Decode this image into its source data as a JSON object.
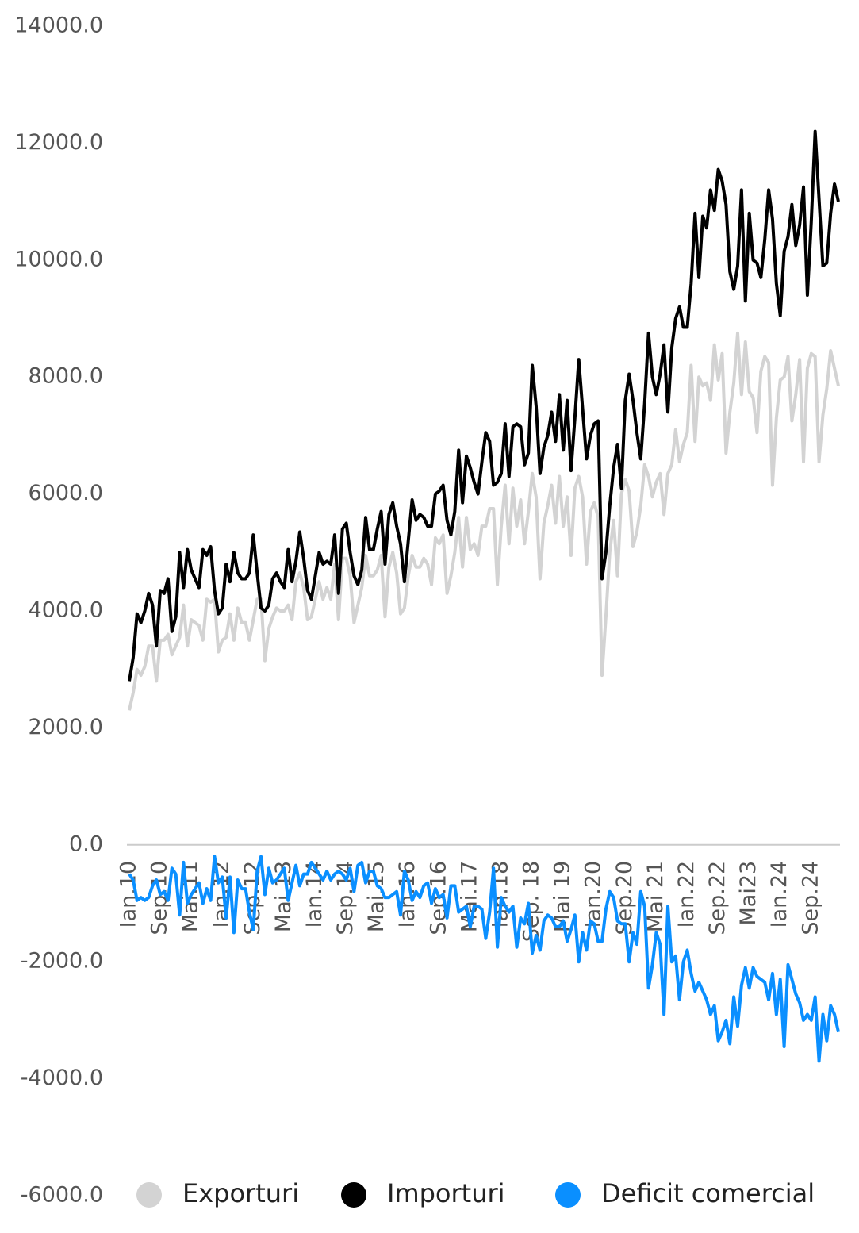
{
  "chart_data": {
    "type": "line",
    "categories": [
      "Ian.10",
      null,
      null,
      null,
      null,
      null,
      null,
      null,
      "Sep.10",
      null,
      null,
      null,
      null,
      null,
      null,
      null,
      "Mai.11",
      null,
      null,
      null,
      null,
      null,
      null,
      null,
      "Ian.12",
      null,
      null,
      null,
      null,
      null,
      null,
      null,
      "Sep.12",
      null,
      null,
      null,
      null,
      null,
      null,
      null,
      "Mai.13",
      null,
      null,
      null,
      null,
      null,
      null,
      null,
      "Ian.14",
      null,
      null,
      null,
      null,
      null,
      null,
      null,
      "Sep.14",
      null,
      null,
      null,
      null,
      null,
      null,
      null,
      "Mai.15",
      null,
      null,
      null,
      null,
      null,
      null,
      null,
      "Ian.16",
      null,
      null,
      null,
      null,
      null,
      null,
      null,
      "Sep.16",
      null,
      null,
      null,
      null,
      null,
      null,
      null,
      "Mai.17",
      null,
      null,
      null,
      null,
      null,
      null,
      null,
      "Ian.18",
      null,
      null,
      null,
      null,
      null,
      null,
      null,
      "Sep. 18",
      null,
      null,
      null,
      null,
      null,
      null,
      null,
      "Mai 19",
      null,
      null,
      null,
      null,
      null,
      null,
      null,
      "Ian.20",
      null,
      null,
      null,
      null,
      null,
      null,
      null,
      "Sep.20",
      null,
      null,
      null,
      null,
      null,
      null,
      null,
      "Mai 21",
      null,
      null,
      null,
      null,
      null,
      null,
      null,
      "Ian.22",
      null,
      null,
      null,
      null,
      null,
      null,
      null,
      "Sep.22",
      null,
      null,
      null,
      null,
      null,
      null,
      null,
      "Mai23",
      null,
      null,
      null,
      null,
      null,
      null,
      null,
      "Ian.24",
      null,
      null,
      null,
      null,
      null,
      null,
      null,
      "Sep.24",
      null,
      null,
      null,
      null,
      null,
      null,
      null
    ],
    "series": [
      {
        "name": "Exporturi",
        "color": "#d3d3d3",
        "values": [
          2300,
          2600,
          3000,
          2900,
          3050,
          3400,
          3400,
          2800,
          3500,
          3500,
          3600,
          3250,
          3400,
          3550,
          4100,
          3400,
          3850,
          3800,
          3750,
          3500,
          4200,
          4150,
          4200,
          3300,
          3500,
          3550,
          3950,
          3500,
          4050,
          3800,
          3800,
          3500,
          3850,
          4200,
          4200,
          3150,
          3700,
          3900,
          4050,
          4000,
          4000,
          4100,
          3850,
          4500,
          4650,
          4400,
          3850,
          3900,
          4200,
          4500,
          4200,
          4400,
          4200,
          4800,
          3850,
          4900,
          4900,
          4600,
          3800,
          4100,
          4400,
          4950,
          4600,
          4600,
          4700,
          4950,
          3900,
          4750,
          5000,
          4650,
          3950,
          4050,
          4600,
          4950,
          4750,
          4750,
          4900,
          4800,
          4450,
          5250,
          5150,
          5300,
          4300,
          4600,
          5000,
          5600,
          4750,
          5600,
          5050,
          5150,
          4950,
          5450,
          5450,
          5750,
          5750,
          4450,
          5450,
          6150,
          5150,
          6100,
          5450,
          5900,
          5150,
          5700,
          6350,
          5950,
          4550,
          5500,
          5800,
          6150,
          5500,
          6300,
          5450,
          5950,
          4950,
          6100,
          6300,
          5950,
          4800,
          5700,
          5850,
          5600,
          2900,
          3900,
          5000,
          5550,
          4600,
          6000,
          6250,
          6050,
          5100,
          5350,
          5800,
          6500,
          6300,
          5950,
          6200,
          6350,
          5650,
          6350,
          6500,
          7100,
          6550,
          6850,
          7050,
          8200,
          6900,
          8000,
          7850,
          7900,
          7600,
          8550,
          7950,
          8400,
          6700,
          7400,
          7900,
          8750,
          7700,
          8600,
          7750,
          7650,
          7050,
          8100,
          8350,
          8250,
          6150,
          7300,
          7950,
          8000,
          8350,
          7250,
          7700,
          8300,
          6550,
          8150,
          8400,
          8350,
          6550,
          7350,
          7800,
          8450,
          8150,
          7850
        ]
      },
      {
        "name": "Importuri",
        "color": "#000000",
        "values": [
          2800,
          3200,
          3950,
          3800,
          4000,
          4300,
          4100,
          3400,
          4350,
          4300,
          4550,
          3650,
          3900,
          5000,
          4400,
          5050,
          4700,
          4550,
          4400,
          5050,
          4950,
          5100,
          4350,
          3950,
          4050,
          4800,
          4500,
          5000,
          4650,
          4550,
          4550,
          4650,
          5300,
          4650,
          4050,
          4000,
          4100,
          4550,
          4650,
          4500,
          4400,
          5050,
          4500,
          4850,
          5350,
          4900,
          4350,
          4200,
          4600,
          5000,
          4800,
          4850,
          4800,
          5300,
          4300,
          5400,
          5500,
          5000,
          4600,
          4450,
          4700,
          5600,
          5050,
          5050,
          5400,
          5700,
          4800,
          5650,
          5850,
          5450,
          5150,
          4500,
          5200,
          5900,
          5550,
          5650,
          5600,
          5450,
          5450,
          6000,
          6050,
          6150,
          5550,
          5300,
          5700,
          6750,
          5850,
          6650,
          6450,
          6200,
          6000,
          6550,
          7050,
          6900,
          6150,
          6200,
          6350,
          7200,
          6300,
          7150,
          7200,
          7150,
          6500,
          6700,
          8200,
          7500,
          6350,
          6800,
          7000,
          7400,
          6900,
          7700,
          6750,
          7600,
          6400,
          7300,
          8300,
          7450,
          6600,
          7000,
          7200,
          7250,
          4550,
          5000,
          5800,
          6450,
          6850,
          6100,
          7600,
          8050,
          7600,
          7050,
          6600,
          7550,
          8750,
          8000,
          7700,
          8050,
          8550,
          7400,
          8500,
          9000,
          9200,
          8850,
          8850,
          9600,
          10800,
          9700,
          10750,
          10550,
          11200,
          10850,
          11550,
          11350,
          10950,
          9800,
          9500,
          9900,
          11200,
          9300,
          10800,
          10000,
          9950,
          9700,
          10350,
          11200,
          10700,
          9600,
          9050,
          10150,
          10400,
          10950,
          10250,
          10600,
          11250,
          9400,
          10650,
          12200,
          11050,
          9900,
          9950,
          10800,
          11300,
          11000
        ]
      },
      {
        "name": "Deficit comercial",
        "color": "#0a8fff",
        "values": [
          -500,
          -600,
          -950,
          -900,
          -950,
          -900,
          -700,
          -600,
          -850,
          -800,
          -950,
          -400,
          -500,
          -1200,
          -300,
          -1000,
          -850,
          -750,
          -650,
          -1000,
          -750,
          -950,
          -200,
          -650,
          -550,
          -1250,
          -550,
          -1500,
          -600,
          -750,
          -750,
          -1150,
          -1450,
          -450,
          -200,
          -850,
          -400,
          -650,
          -600,
          -500,
          -400,
          -950,
          -650,
          -350,
          -700,
          -500,
          -500,
          -300,
          -400,
          -500,
          -600,
          -450,
          -600,
          -500,
          -450,
          -500,
          -600,
          -400,
          -800,
          -350,
          -300,
          -650,
          -450,
          -450,
          -700,
          -750,
          -900,
          -900,
          -850,
          -800,
          -1200,
          -450,
          -600,
          -950,
          -800,
          -900,
          -700,
          -650,
          -1000,
          -750,
          -900,
          -850,
          -1250,
          -700,
          -700,
          -1150,
          -1100,
          -1050,
          -1400,
          -1050,
          -1050,
          -1100,
          -1600,
          -1150,
          -400,
          -1750,
          -900,
          -1050,
          -1150,
          -1050,
          -1750,
          -1250,
          -1350,
          -1000,
          -1850,
          -1550,
          -1800,
          -1300,
          -1200,
          -1250,
          -1400,
          -1400,
          -1300,
          -1650,
          -1450,
          -1200,
          -2000,
          -1500,
          -1800,
          -1300,
          -1350,
          -1650,
          -1650,
          -1100,
          -800,
          -900,
          -1300,
          -1350,
          -1350,
          -2000,
          -1500,
          -1700,
          -800,
          -1050,
          -2450,
          -2050,
          -1500,
          -1700,
          -2900,
          -1050,
          -2000,
          -1900,
          -2650,
          -2000,
          -1800,
          -2200,
          -2500,
          -2350,
          -2500,
          -2650,
          -2900,
          -2750,
          -3350,
          -3200,
          -3000,
          -3400,
          -2600,
          -3100,
          -2400,
          -2100,
          -2450,
          -2100,
          -2250,
          -2300,
          -2350,
          -2650,
          -2200,
          -2900,
          -2300,
          -3450,
          -2050,
          -2300,
          -2550,
          -2700,
          -3000,
          -2900,
          -3000,
          -2600,
          -3700,
          -2900,
          -3350,
          -2750,
          -2900,
          -3200
        ]
      }
    ],
    "ylim": [
      -6000,
      14000
    ],
    "yticks": [
      {
        "value": -6000,
        "label": "-6000.0"
      },
      {
        "value": -4000,
        "label": "-4000.0"
      },
      {
        "value": -2000,
        "label": "-2000.0"
      },
      {
        "value": 0,
        "label": "0.0"
      },
      {
        "value": 2000,
        "label": "2000.0"
      },
      {
        "value": 4000,
        "label": "4000.0"
      },
      {
        "value": 6000,
        "label": "6000.0"
      },
      {
        "value": 8000,
        "label": "8000.0"
      },
      {
        "value": 10000,
        "label": "10000.0"
      },
      {
        "value": 12000,
        "label": "12000.0"
      },
      {
        "value": 14000,
        "label": "14000.0"
      }
    ],
    "grid": false,
    "legend": "bottom"
  }
}
